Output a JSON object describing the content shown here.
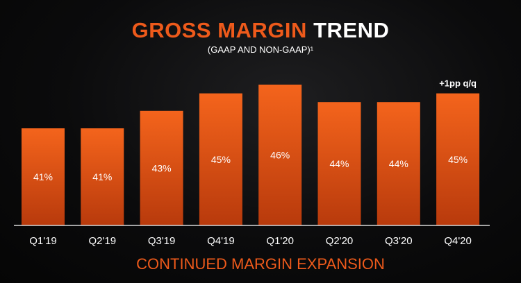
{
  "header": {
    "title_accent": "GROSS MARGIN",
    "title_rest": "TREND",
    "subtitle": "(GAAP AND NON-GAAP)¹"
  },
  "footer": {
    "caption": "CONTINUED MARGIN EXPANSION"
  },
  "colors": {
    "accent": "#ee5a1b",
    "bar_top": "#f4641c",
    "bar_bottom": "#b83a0c",
    "text": "#ffffff",
    "background": "#0b0b0c"
  },
  "chart_data": {
    "type": "bar",
    "categories": [
      "Q1'19",
      "Q2'19",
      "Q3'19",
      "Q4'19",
      "Q1'20",
      "Q2'20",
      "Q3'20",
      "Q4'20"
    ],
    "values": [
      41,
      41,
      43,
      45,
      46,
      44,
      44,
      45
    ],
    "value_labels": [
      "41%",
      "41%",
      "43%",
      "45%",
      "46%",
      "44%",
      "44%",
      "45%"
    ],
    "annotation": {
      "category": "Q4'20",
      "text": "+1pp q/q"
    },
    "title": "GROSS MARGIN TREND",
    "subtitle": "(GAAP AND NON-GAAP)¹",
    "xlabel": "",
    "ylabel": "",
    "grid": false,
    "legend": "none"
  }
}
